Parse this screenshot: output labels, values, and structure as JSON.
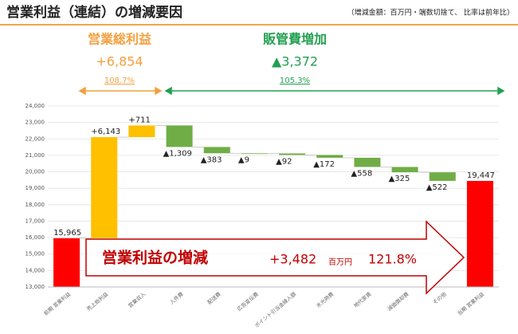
{
  "title": "営業利益（連結）の増減要因",
  "note": "（増減金額：百万円・端数切捨て、 比率は前年比）",
  "gross": {
    "label": "営業総利益",
    "value": "+6,854",
    "ratio": "108.7%"
  },
  "sga": {
    "label": "販管費増加",
    "value": "▲3,372",
    "ratio": "105.3%"
  },
  "banner": {
    "label": "営業利益の増減",
    "value": "+3,482",
    "unit": "百万円",
    "ratio": "121.8%"
  },
  "chart_data": {
    "type": "waterfall",
    "categories": [
      "前期 営業利益",
      "売上総利益",
      "営業収入",
      "人件費",
      "配送費",
      "広告宣伝費",
      "ポイント引当金繰入額",
      "水光熱費",
      "地代家賃",
      "減価償却費",
      "その他",
      "当期 営業利益"
    ],
    "values": [
      15965,
      6143,
      711,
      -1309,
      -383,
      -9,
      -92,
      -172,
      -558,
      -325,
      -522,
      19447
    ],
    "value_labels": [
      "15,965",
      "+6,143",
      "+711",
      "▲1,309",
      "▲383",
      "▲9",
      "▲92",
      "▲172",
      "▲558",
      "▲325",
      "▲522",
      "19,447"
    ],
    "measure": [
      "total",
      "relative",
      "relative",
      "relative",
      "relative",
      "relative",
      "relative",
      "relative",
      "relative",
      "relative",
      "relative",
      "total"
    ],
    "colors": {
      "total": "#ff0000",
      "increase": "#ffc000",
      "decrease": "#70ad47"
    },
    "ylim": [
      13000,
      24000
    ],
    "yticks": [
      {
        "value": 13000,
        "label": "13,000"
      },
      {
        "value": 14000,
        "label": "14,000"
      },
      {
        "value": 15000,
        "label": "15,000"
      },
      {
        "value": 16000,
        "label": "16,000"
      },
      {
        "value": 17000,
        "label": "17,000"
      },
      {
        "value": 18000,
        "label": "18,000"
      },
      {
        "value": 19000,
        "label": "19,000"
      },
      {
        "value": 20000,
        "label": "20,000"
      },
      {
        "value": 21000,
        "label": "21,000"
      },
      {
        "value": 22000,
        "label": "22,000"
      },
      {
        "value": 23000,
        "label": "23,000"
      },
      {
        "value": 24000,
        "label": "24,000"
      }
    ],
    "grid": true
  }
}
